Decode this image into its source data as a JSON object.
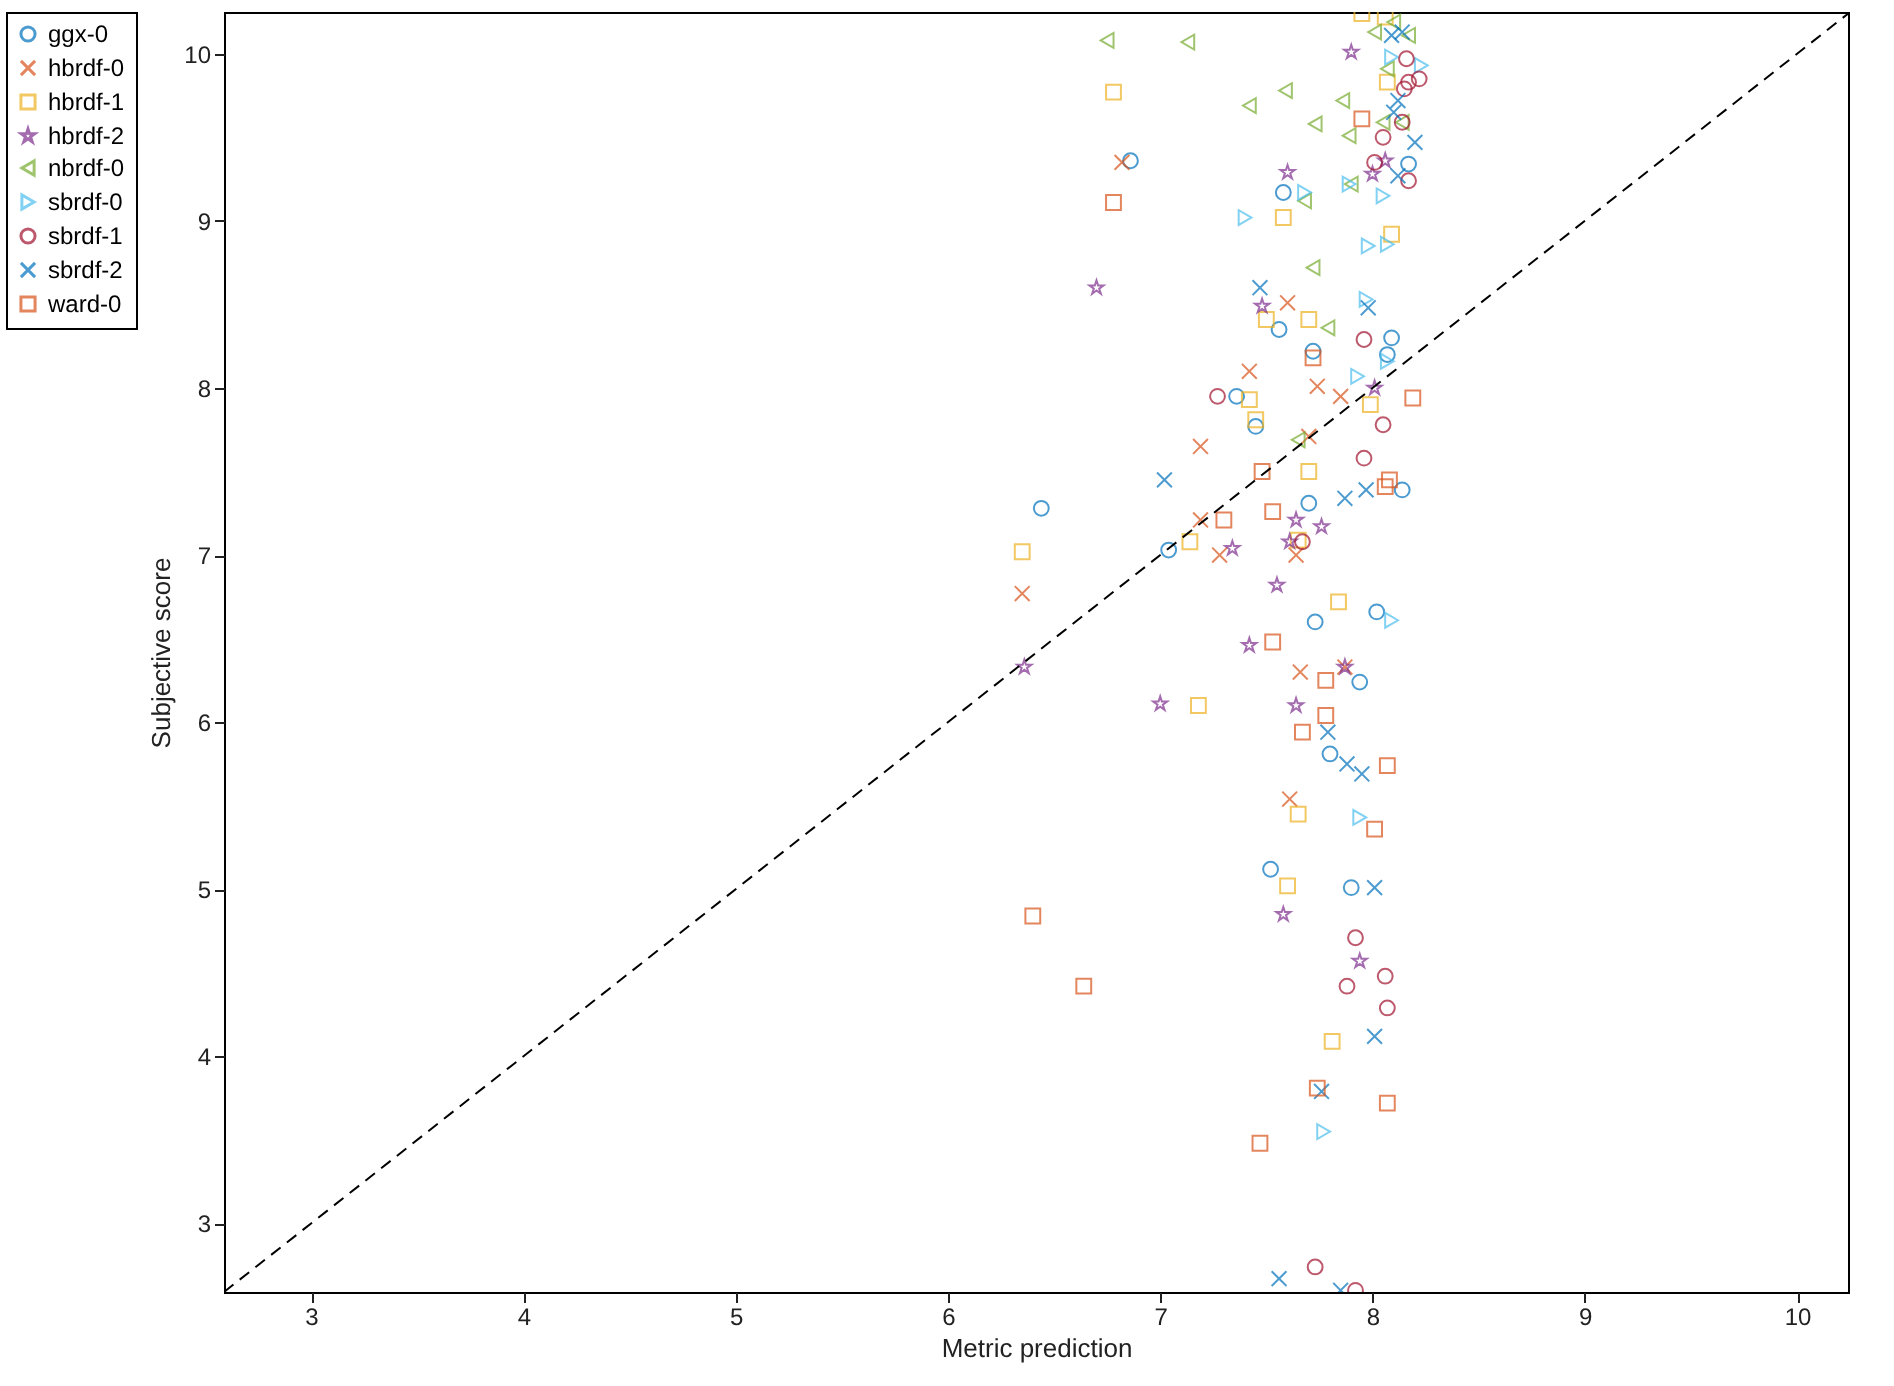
{
  "chart_data": {
    "type": "scatter",
    "xlabel": "Metric prediction",
    "ylabel": "Subjective score",
    "xlim": [
      2.59,
      10.24
    ],
    "ylim": [
      2.59,
      10.25
    ],
    "xticks": [
      3,
      4,
      5,
      6,
      7,
      8,
      9,
      10
    ],
    "yticks": [
      3,
      4,
      5,
      6,
      7,
      8,
      9,
      10
    ],
    "grid": false,
    "legend": "left",
    "series": [
      {
        "name": "ggx-0",
        "color": "#0072bd",
        "marker": "circle",
        "x": [
          6.86,
          6.44,
          7.04,
          7.58,
          7.56,
          7.72,
          8.07,
          8.09,
          7.36,
          7.45,
          8.17,
          7.7,
          8.14,
          7.73,
          8.02,
          7.94,
          7.8,
          7.52,
          7.9
        ],
        "values": [
          9.36,
          7.28,
          7.03,
          9.17,
          8.35,
          8.22,
          8.2,
          8.3,
          7.95,
          7.77,
          9.34,
          7.31,
          7.39,
          6.6,
          6.66,
          6.24,
          5.81,
          5.12,
          5.01
        ]
      },
      {
        "name": "hbrdf-0",
        "color": "#d95319",
        "marker": "cross",
        "x": [
          6.82,
          7.19,
          7.19,
          6.35,
          7.6,
          7.42,
          7.74,
          7.85,
          7.7,
          7.28,
          7.64,
          7.66,
          7.87,
          7.61
        ],
        "values": [
          9.35,
          7.65,
          7.21,
          6.77,
          8.51,
          8.1,
          8.01,
          7.95,
          7.71,
          7.0,
          7.0,
          6.3,
          6.33,
          5.54
        ]
      },
      {
        "name": "hbrdf-1",
        "color": "#edb120",
        "marker": "square",
        "x": [
          6.78,
          6.35,
          7.14,
          7.18,
          7.95,
          8.06,
          8.07,
          7.58,
          8.09,
          7.5,
          7.7,
          7.42,
          7.45,
          7.99,
          7.7,
          7.84,
          7.65,
          7.65,
          7.6,
          7.81
        ],
        "values": [
          9.77,
          7.02,
          7.08,
          6.1,
          10.24,
          10.22,
          9.83,
          9.02,
          8.92,
          8.41,
          8.41,
          7.93,
          7.81,
          7.9,
          7.5,
          6.72,
          7.09,
          5.45,
          5.02,
          4.09
        ]
      },
      {
        "name": "hbrdf-2",
        "color": "#7e2f8e",
        "marker": "star",
        "x": [
          6.7,
          6.36,
          7.0,
          7.9,
          7.6,
          8.06,
          8.0,
          7.48,
          8.01,
          7.64,
          7.76,
          7.61,
          7.34,
          7.55,
          7.42,
          7.87,
          7.64,
          7.58,
          7.94
        ],
        "values": [
          8.6,
          6.33,
          6.11,
          10.01,
          9.29,
          9.36,
          9.28,
          8.49,
          8.0,
          7.21,
          7.17,
          7.08,
          7.04,
          6.82,
          6.46,
          6.33,
          6.1,
          4.85,
          4.57
        ]
      },
      {
        "name": "nbrdf-0",
        "color": "#77ac30",
        "marker": "triangle-left",
        "x": [
          6.75,
          7.13,
          7.42,
          7.59,
          7.86,
          7.73,
          7.89,
          7.68,
          7.9,
          7.72,
          7.79,
          7.65,
          8.01,
          8.1,
          8.17,
          8.07,
          8.05,
          8.14
        ],
        "values": [
          10.08,
          10.07,
          9.69,
          9.78,
          9.72,
          9.58,
          9.51,
          9.12,
          9.22,
          8.72,
          8.36,
          7.69,
          10.13,
          10.19,
          10.11,
          9.91,
          9.59,
          9.59
        ]
      },
      {
        "name": "sbrdf-0",
        "color": "#4dbeee",
        "marker": "triangle-right",
        "x": [
          7.4,
          7.68,
          7.89,
          8.05,
          7.98,
          8.07,
          7.97,
          7.93,
          8.07,
          8.09,
          8.23,
          8.09,
          7.94,
          7.77
        ],
        "values": [
          9.02,
          9.17,
          9.22,
          9.15,
          8.85,
          8.86,
          8.53,
          8.07,
          8.16,
          9.98,
          9.93,
          6.61,
          5.43,
          3.55
        ]
      },
      {
        "name": "sbrdf-1",
        "color": "#a2142f",
        "marker": "circle",
        "x": [
          8.16,
          8.22,
          8.17,
          8.15,
          8.14,
          8.05,
          8.01,
          8.17,
          7.96,
          7.27,
          8.05,
          7.96,
          7.67,
          7.92,
          8.06,
          7.88,
          8.07,
          7.73,
          7.92
        ],
        "values": [
          9.97,
          9.85,
          9.83,
          9.79,
          9.59,
          9.5,
          9.35,
          9.24,
          8.29,
          7.95,
          7.78,
          7.58,
          7.08,
          4.71,
          4.48,
          4.42,
          4.29,
          2.74,
          2.6
        ]
      },
      {
        "name": "sbrdf-2",
        "color": "#0072bd",
        "marker": "cross",
        "x": [
          7.02,
          8.09,
          8.14,
          8.12,
          8.1,
          8.2,
          8.12,
          7.47,
          7.98,
          7.87,
          7.97,
          7.79,
          7.88,
          7.95,
          8.01,
          8.01,
          7.76,
          7.56,
          7.85
        ],
        "values": [
          7.45,
          10.11,
          10.13,
          9.72,
          9.65,
          9.47,
          9.27,
          8.6,
          8.48,
          7.34,
          7.39,
          5.94,
          5.75,
          5.69,
          5.01,
          4.12,
          3.79,
          2.67,
          2.6
        ]
      },
      {
        "name": "ward-0",
        "color": "#d95319",
        "marker": "square",
        "x": [
          6.78,
          6.4,
          6.64,
          7.95,
          7.72,
          8.19,
          7.48,
          7.3,
          7.53,
          8.06,
          8.08,
          7.53,
          7.78,
          7.78,
          7.67,
          8.07,
          8.01,
          7.74,
          8.07,
          7.47
        ],
        "values": [
          9.11,
          4.84,
          4.42,
          9.61,
          8.18,
          7.94,
          7.5,
          7.21,
          7.26,
          7.41,
          7.45,
          6.48,
          6.25,
          6.04,
          5.94,
          5.74,
          5.36,
          3.81,
          3.72,
          3.48
        ]
      },
      {
        "type": "line",
        "color": "#000000",
        "marker": "none",
        "line_style": "dashed",
        "x": [
          2.59,
          10.24
        ],
        "values": [
          2.59,
          10.24
        ]
      }
    ]
  }
}
